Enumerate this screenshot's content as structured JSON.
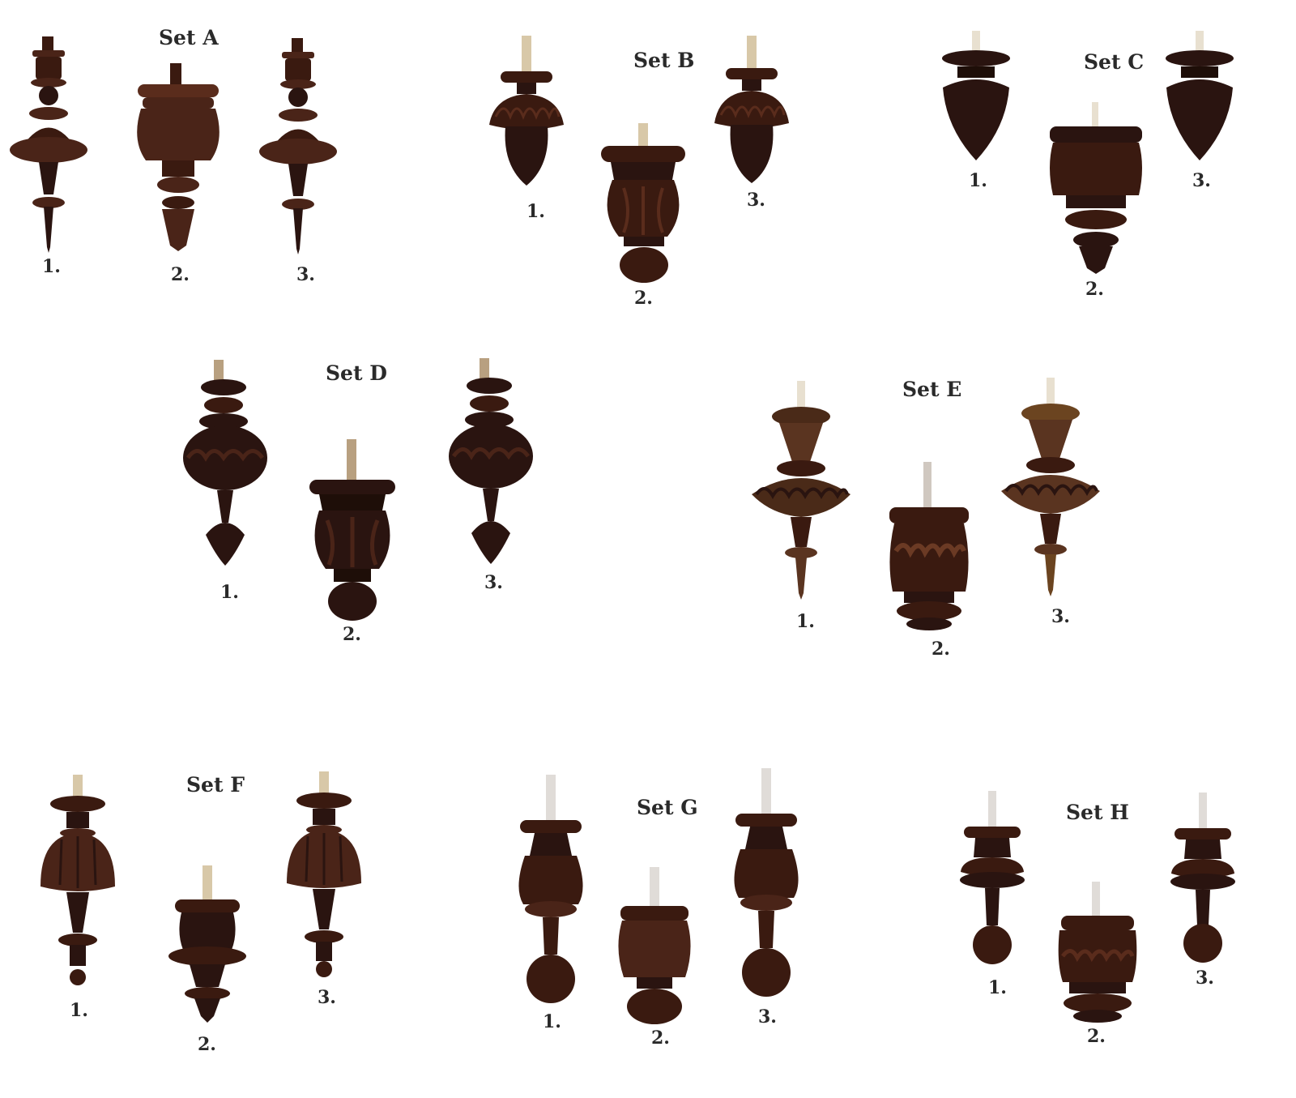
{
  "sets": [
    {
      "id": "A",
      "title": "Set A",
      "items": [
        {
          "label": "1."
        },
        {
          "label": "2."
        },
        {
          "label": "3."
        }
      ]
    },
    {
      "id": "B",
      "title": "Set  B",
      "items": [
        {
          "label": "1."
        },
        {
          "label": "2."
        },
        {
          "label": "3."
        }
      ]
    },
    {
      "id": "C",
      "title": "Set C",
      "items": [
        {
          "label": "1."
        },
        {
          "label": "2."
        },
        {
          "label": "3."
        }
      ]
    },
    {
      "id": "D",
      "title": "Set D",
      "items": [
        {
          "label": "1."
        },
        {
          "label": "2."
        },
        {
          "label": "3."
        }
      ]
    },
    {
      "id": "E",
      "title": "Set E",
      "items": [
        {
          "label": "1."
        },
        {
          "label": "2."
        },
        {
          "label": "3."
        }
      ]
    },
    {
      "id": "F",
      "title": "Set F",
      "items": [
        {
          "label": "1."
        },
        {
          "label": "2."
        },
        {
          "label": "3."
        }
      ]
    },
    {
      "id": "G",
      "title": "Set  G",
      "items": [
        {
          "label": "1."
        },
        {
          "label": "2."
        },
        {
          "label": "3."
        }
      ]
    },
    {
      "id": "H",
      "title": "Set H",
      "items": [
        {
          "label": "1."
        },
        {
          "label": "2."
        },
        {
          "label": "3."
        }
      ]
    }
  ],
  "colors": {
    "wood_dark": "#2a1410",
    "wood_mid": "#4a2418",
    "wood_light": "#6b3a24",
    "dowel": "#d8c8a8",
    "text": "#2a2a2a",
    "background": "#ffffff"
  }
}
